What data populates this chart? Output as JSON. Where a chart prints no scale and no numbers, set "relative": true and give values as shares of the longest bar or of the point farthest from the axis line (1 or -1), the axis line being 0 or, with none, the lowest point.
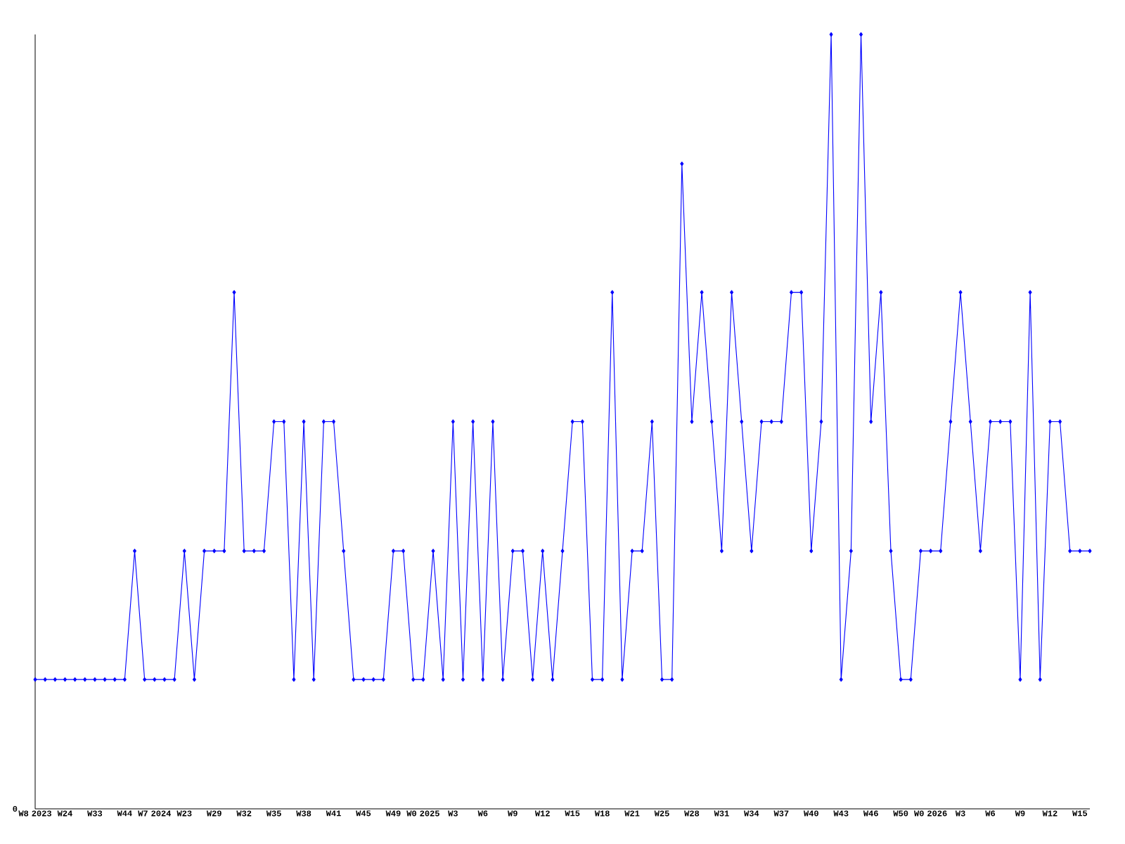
{
  "chart_data": {
    "type": "line",
    "relative": true,
    "color": "#0000ff",
    "marker": "diamond",
    "line_style": "solid",
    "annotations": [
      "0"
    ],
    "categories": [
      "W8 2023",
      null,
      null,
      "W24",
      null,
      null,
      "W33",
      null,
      null,
      "W44",
      null,
      null,
      "W7 2024",
      null,
      null,
      "W23",
      null,
      null,
      "W29",
      null,
      null,
      "W32",
      null,
      null,
      "W35",
      null,
      null,
      "W38",
      null,
      null,
      "W41",
      null,
      null,
      "W45",
      null,
      null,
      "W49",
      null,
      null,
      "W0 2025",
      null,
      null,
      "W3",
      null,
      null,
      "W6",
      null,
      null,
      "W9",
      null,
      null,
      "W12",
      null,
      null,
      "W15",
      null,
      null,
      "W18",
      null,
      null,
      "W21",
      null,
      null,
      "W25",
      null,
      null,
      "W28",
      null,
      null,
      "W31",
      null,
      null,
      "W34",
      null,
      null,
      "W37",
      null,
      null,
      "W40",
      null,
      null,
      "W43",
      null,
      null,
      "W46",
      null,
      null,
      "W50",
      null,
      null,
      "W0 2026",
      null,
      null,
      "W3",
      null,
      null,
      "W6",
      null,
      null,
      "W9",
      null,
      null,
      "W12",
      null,
      null,
      "W15",
      null
    ],
    "values": [
      0.167,
      0.167,
      0.167,
      0.167,
      0.167,
      0.167,
      0.167,
      0.167,
      0.167,
      0.167,
      0.333,
      0.167,
      0.167,
      0.167,
      0.167,
      0.333,
      0.167,
      0.333,
      0.333,
      0.333,
      0.667,
      0.333,
      0.333,
      0.333,
      0.5,
      0.5,
      0.167,
      0.5,
      0.167,
      0.5,
      0.5,
      0.333,
      0.167,
      0.167,
      0.167,
      0.167,
      0.333,
      0.333,
      0.167,
      0.167,
      0.333,
      0.167,
      0.5,
      0.167,
      0.5,
      0.167,
      0.5,
      0.167,
      0.333,
      0.333,
      0.167,
      0.333,
      0.167,
      0.333,
      0.5,
      0.5,
      0.167,
      0.167,
      0.667,
      0.167,
      0.333,
      0.333,
      0.5,
      0.167,
      0.167,
      0.833,
      0.5,
      0.667,
      0.5,
      0.333,
      0.667,
      0.5,
      0.333,
      0.5,
      0.5,
      0.5,
      0.667,
      0.667,
      0.333,
      0.5,
      1,
      0.167,
      0.333,
      1,
      0.5,
      0.667,
      0.333,
      0.167,
      0.167,
      0.333,
      0.333,
      0.333,
      0.5,
      0.667,
      0.5,
      0.333,
      0.5,
      0.5,
      0.5,
      0.167,
      0.667,
      0.167,
      0.5,
      0.5,
      0.333,
      0.333,
      0.333
    ]
  }
}
